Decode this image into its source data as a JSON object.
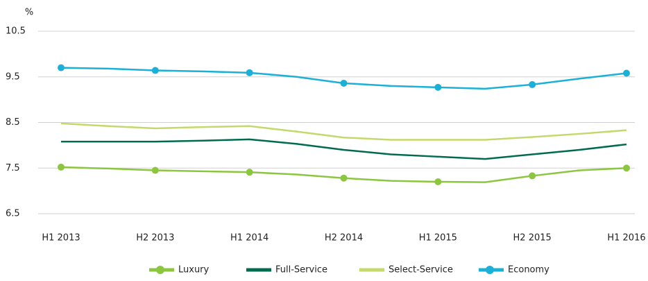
{
  "chart_data": {
    "type": "line",
    "y_unit": "%",
    "categories": [
      "H1 2013",
      null,
      "H2 2013",
      null,
      "H1 2014",
      null,
      "H2 2014",
      null,
      "H1 2015",
      null,
      "H2 2015",
      null,
      "H1 2016"
    ],
    "series": [
      {
        "name": "Luxury",
        "color": "#8cc63f",
        "marker": true,
        "values": [
          7.52,
          7.49,
          7.45,
          7.43,
          7.41,
          7.36,
          7.28,
          7.22,
          7.2,
          7.19,
          7.33,
          7.45,
          7.5
        ]
      },
      {
        "name": "Full-Service",
        "color": "#006b4f",
        "marker": false,
        "values": [
          8.08,
          8.08,
          8.08,
          8.1,
          8.13,
          8.03,
          7.9,
          7.8,
          7.75,
          7.7,
          7.8,
          7.9,
          8.02
        ]
      },
      {
        "name": "Select-Service",
        "color": "#c3d96b",
        "marker": false,
        "values": [
          8.48,
          8.42,
          8.37,
          8.4,
          8.42,
          8.3,
          8.17,
          8.12,
          8.12,
          8.12,
          8.18,
          8.25,
          8.33
        ]
      },
      {
        "name": "Economy",
        "color": "#1ab0d8",
        "marker": true,
        "values": [
          9.7,
          9.68,
          9.64,
          9.62,
          9.59,
          9.5,
          9.36,
          9.3,
          9.27,
          9.24,
          9.33,
          9.46,
          9.58
        ]
      }
    ],
    "ylim": [
      6.5,
      10.5
    ],
    "yticks": [
      6.5,
      7.5,
      8.5,
      9.5,
      10.5
    ],
    "grid": true,
    "legend": "bottom"
  }
}
